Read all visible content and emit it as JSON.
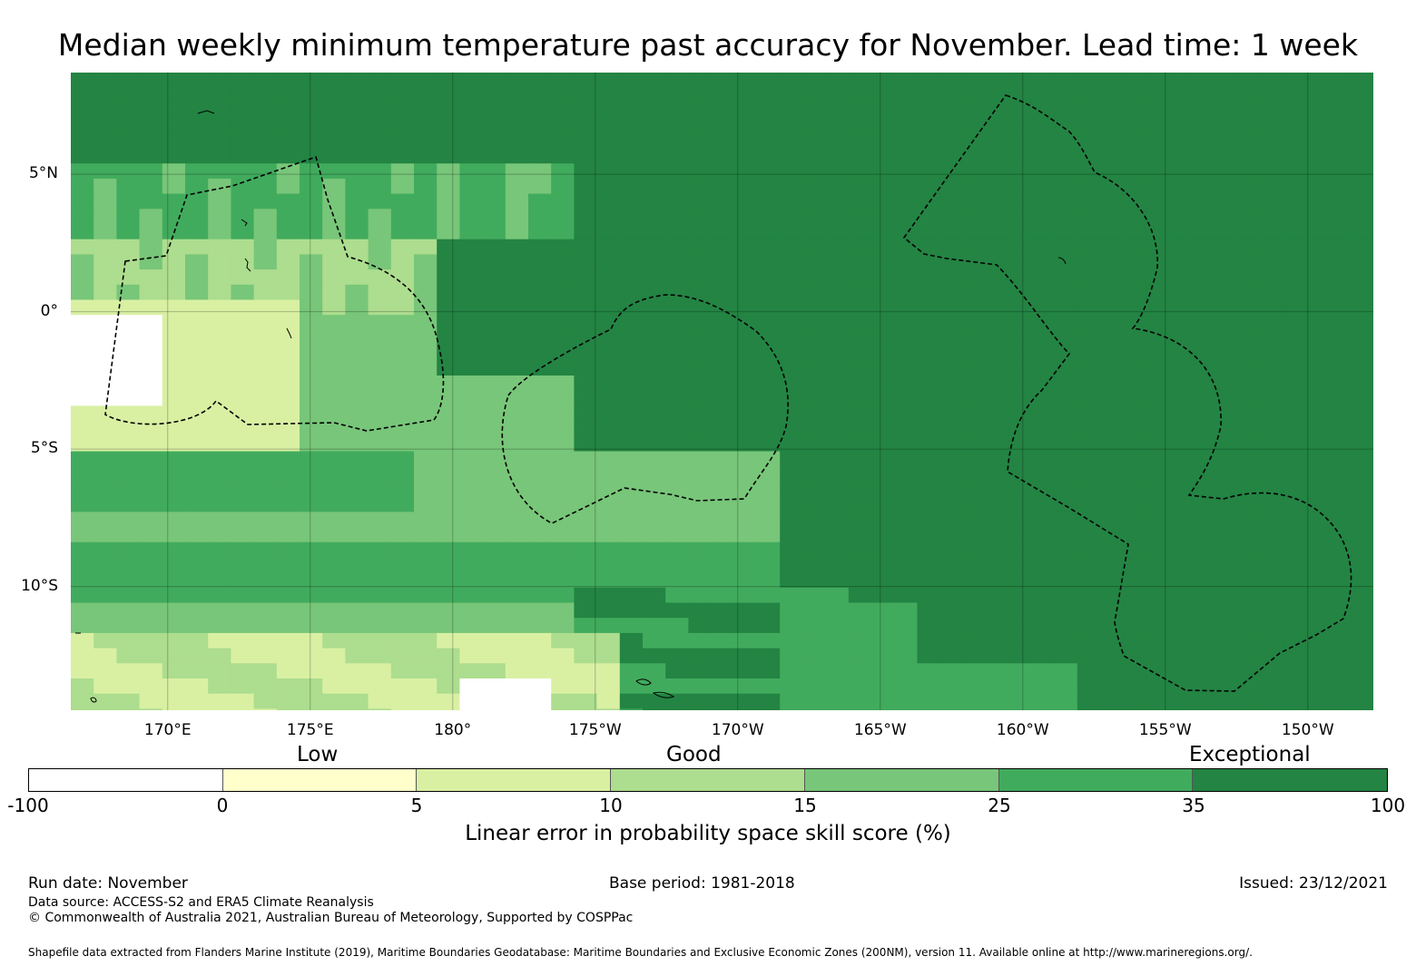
{
  "title": "Median weekly minimum temperature past accuracy for November. Lead time: 1 week",
  "map": {
    "lon_range": [
      167,
      147.5
    ],
    "lat_range": [
      -14.5,
      8.7
    ],
    "lat_ticks": [
      {
        "label": "5°N",
        "value": 5
      },
      {
        "label": "0°",
        "value": 0
      },
      {
        "label": "5°S",
        "value": -5
      },
      {
        "label": "10°S",
        "value": -10
      }
    ],
    "lon_ticks": [
      {
        "label": "170°E",
        "value": 170
      },
      {
        "label": "175°E",
        "value": 175
      },
      {
        "label": "180°",
        "value": 180
      },
      {
        "label": "175°W",
        "value": 185
      },
      {
        "label": "170°W",
        "value": 190
      },
      {
        "label": "165°W",
        "value": 195
      },
      {
        "label": "160°W",
        "value": 200
      },
      {
        "label": "155°W",
        "value": 205
      },
      {
        "label": "150°W",
        "value": 210
      }
    ],
    "land_color": "#000000",
    "eez_line_style": "dashed"
  },
  "categories": {
    "low": "Low",
    "good": "Good",
    "exceptional": "Exceptional"
  },
  "colorbar": {
    "ticks": [
      "-100",
      "0",
      "5",
      "10",
      "15",
      "25",
      "35",
      "100"
    ],
    "colors": [
      "#ffffff",
      "#ffffcc",
      "#d9f0a3",
      "#addd8e",
      "#78c679",
      "#41ab5d",
      "#238443"
    ],
    "label": "Linear error in probability space skill score (%)"
  },
  "footer": {
    "run_date": "Run date: November",
    "base_period": "Base period: 1981-2018",
    "issued": "Issued: 23/12/2021",
    "data_source": "Data source: ACCESS-S2 and ERA5 Climate Reanalysis",
    "copyright": "© Commonwealth of Australia 2021, Australian Bureau of Meteorology, Supported by COSPPac",
    "shapefile": "Shapefile data extracted from Flanders Marine Institute (2019), Maritime Boundaries Geodatabase: Maritime Boundaries and Exclusive Economic Zones (200NM), version 11. Available online at http://www.marineregions.org/."
  }
}
